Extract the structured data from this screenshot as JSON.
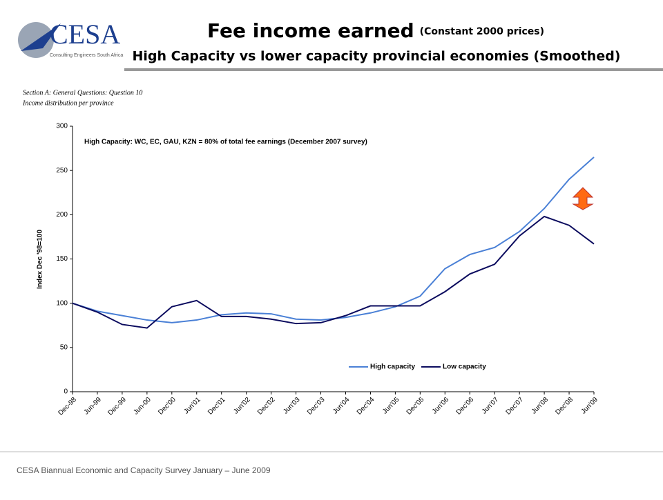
{
  "header": {
    "logo": "CESA",
    "logo_tagline": "Consulting Engineers South Africa",
    "title": "Fee income earned",
    "title_note": "(Constant 2000 prices)",
    "subtitle": "High Capacity vs lower capacity provincial economies (Smoothed)"
  },
  "section": [
    "Section A: General Questions: Question 10",
    "Income distribution per province"
  ],
  "footer": "CESA Biannual Economic and Capacity Survey January – June 2009",
  "chart_data": {
    "type": "line",
    "annotation": "High Capacity: WC, EC, GAU, KZN = 80% of total fee earnings (December 2007 survey)",
    "y_label": "Index Dec '98=100",
    "categories": [
      "Dec-98",
      "Jun-99",
      "Dec-99",
      "Jun-00",
      "Dec'00",
      "Jun'01",
      "Dec'01",
      "Jun'02",
      "Dec'02",
      "Jun'03",
      "Dec'03",
      "Jun'04",
      "Dec'04",
      "Jun'05",
      "Dec'05",
      "Jun'06",
      "Dec'06",
      "Jun'07",
      "Dec'07",
      "Jun'08",
      "Dec'08",
      "Jun'09"
    ],
    "series": [
      {
        "name": "High capacity",
        "color": "#4a80d6",
        "values": [
          100,
          91,
          86,
          81,
          78,
          81,
          87,
          89,
          88,
          82,
          81,
          84,
          89,
          96,
          108,
          139,
          155,
          163,
          181,
          207,
          240,
          265
        ]
      },
      {
        "name": "Low capacity",
        "color": "#0b0b5e",
        "values": [
          100,
          90,
          76,
          72,
          96,
          103,
          85,
          85,
          82,
          77,
          78,
          86,
          97,
          97,
          97,
          113,
          133,
          144,
          176,
          198,
          188,
          167
        ]
      }
    ],
    "ylim": [
      0,
      300
    ],
    "yticks": [
      0,
      50,
      100,
      150,
      200,
      250,
      300
    ]
  }
}
